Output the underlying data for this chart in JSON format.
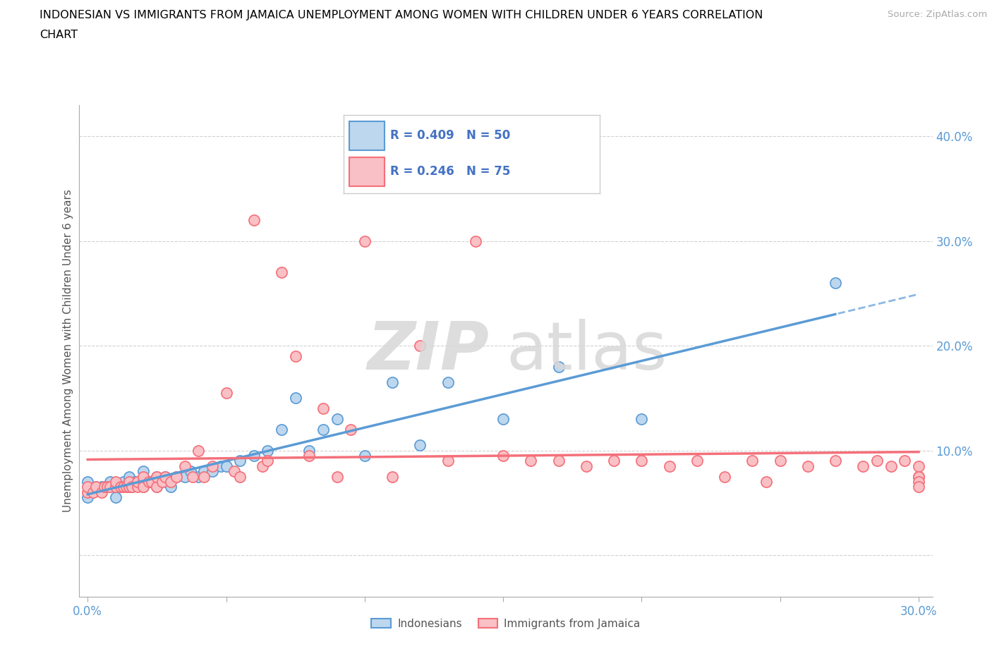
{
  "title_line1": "INDONESIAN VS IMMIGRANTS FROM JAMAICA UNEMPLOYMENT AMONG WOMEN WITH CHILDREN UNDER 6 YEARS CORRELATION",
  "title_line2": "CHART",
  "source": "Source: ZipAtlas.com",
  "ylabel": "Unemployment Among Women with Children Under 6 years",
  "xlim": [
    -0.003,
    0.305
  ],
  "ylim": [
    -0.04,
    0.43
  ],
  "x_ticks": [
    0.0,
    0.3
  ],
  "y_ticks": [
    0.0,
    0.1,
    0.2,
    0.3,
    0.4
  ],
  "blue_color": "#5b9bd5",
  "blue_fill": "#bdd7ee",
  "pink_color": "#f4707a",
  "pink_fill": "#f9c0c5",
  "legend_text_color": "#4472c4",
  "tick_color": "#5b9bd5",
  "grid_color": "#cccccc",
  "blue_R": "0.409",
  "blue_N": "50",
  "pink_R": "0.246",
  "pink_N": "75",
  "blue_scatter_x": [
    0.0,
    0.0,
    0.003,
    0.005,
    0.008,
    0.01,
    0.01,
    0.012,
    0.013,
    0.015,
    0.015,
    0.015,
    0.016,
    0.017,
    0.018,
    0.019,
    0.02,
    0.02,
    0.02,
    0.022,
    0.023,
    0.025,
    0.025,
    0.027,
    0.028,
    0.03,
    0.032,
    0.035,
    0.037,
    0.04,
    0.042,
    0.045,
    0.048,
    0.05,
    0.055,
    0.06,
    0.065,
    0.07,
    0.075,
    0.08,
    0.085,
    0.09,
    0.1,
    0.11,
    0.12,
    0.13,
    0.15,
    0.17,
    0.2,
    0.27
  ],
  "blue_scatter_y": [
    0.055,
    0.07,
    0.065,
    0.065,
    0.07,
    0.055,
    0.065,
    0.065,
    0.07,
    0.065,
    0.07,
    0.075,
    0.065,
    0.07,
    0.07,
    0.07,
    0.065,
    0.075,
    0.08,
    0.07,
    0.07,
    0.065,
    0.075,
    0.07,
    0.075,
    0.065,
    0.075,
    0.075,
    0.08,
    0.075,
    0.08,
    0.08,
    0.085,
    0.085,
    0.09,
    0.095,
    0.1,
    0.12,
    0.15,
    0.1,
    0.12,
    0.13,
    0.095,
    0.165,
    0.105,
    0.165,
    0.13,
    0.18,
    0.13,
    0.26
  ],
  "pink_scatter_x": [
    0.0,
    0.0,
    0.002,
    0.003,
    0.005,
    0.006,
    0.007,
    0.008,
    0.01,
    0.01,
    0.012,
    0.013,
    0.014,
    0.015,
    0.015,
    0.016,
    0.018,
    0.018,
    0.02,
    0.02,
    0.02,
    0.022,
    0.023,
    0.025,
    0.025,
    0.027,
    0.028,
    0.03,
    0.032,
    0.035,
    0.038,
    0.04,
    0.042,
    0.045,
    0.05,
    0.053,
    0.055,
    0.06,
    0.063,
    0.065,
    0.07,
    0.075,
    0.08,
    0.085,
    0.09,
    0.095,
    0.1,
    0.11,
    0.12,
    0.13,
    0.14,
    0.15,
    0.16,
    0.17,
    0.18,
    0.19,
    0.2,
    0.21,
    0.22,
    0.23,
    0.24,
    0.245,
    0.25,
    0.26,
    0.27,
    0.28,
    0.285,
    0.29,
    0.295,
    0.3,
    0.3,
    0.3,
    0.3,
    0.3,
    0.3
  ],
  "pink_scatter_y": [
    0.06,
    0.065,
    0.06,
    0.065,
    0.06,
    0.065,
    0.065,
    0.065,
    0.065,
    0.07,
    0.065,
    0.065,
    0.065,
    0.065,
    0.07,
    0.065,
    0.065,
    0.07,
    0.07,
    0.065,
    0.075,
    0.07,
    0.07,
    0.065,
    0.075,
    0.07,
    0.075,
    0.07,
    0.075,
    0.085,
    0.075,
    0.1,
    0.075,
    0.085,
    0.155,
    0.08,
    0.075,
    0.32,
    0.085,
    0.09,
    0.27,
    0.19,
    0.095,
    0.14,
    0.075,
    0.12,
    0.3,
    0.075,
    0.2,
    0.09,
    0.3,
    0.095,
    0.09,
    0.09,
    0.085,
    0.09,
    0.09,
    0.085,
    0.09,
    0.075,
    0.09,
    0.07,
    0.09,
    0.085,
    0.09,
    0.085,
    0.09,
    0.085,
    0.09,
    0.085,
    0.075,
    0.075,
    0.075,
    0.07,
    0.065
  ]
}
